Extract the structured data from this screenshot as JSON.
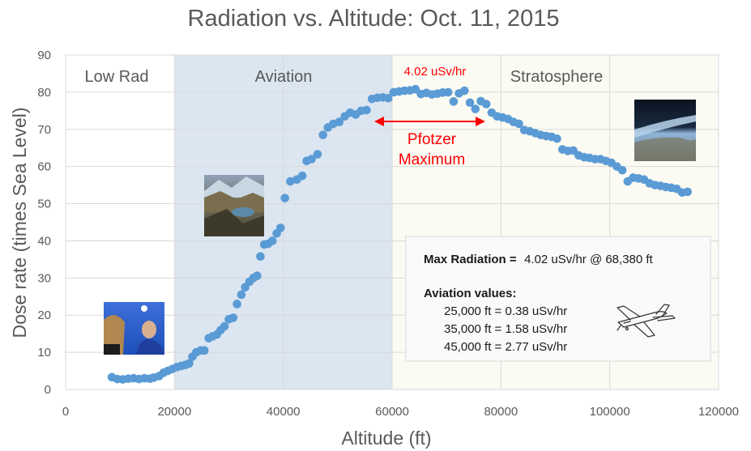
{
  "chart_data": {
    "type": "scatter",
    "title": "Radiation vs. Altitude: Oct. 11, 2015",
    "xlabel": "Altitude (ft)",
    "ylabel": "Dose rate (times Sea Level)",
    "xlim": [
      0,
      120000
    ],
    "ylim": [
      0,
      90
    ],
    "xticks": [
      0,
      20000,
      40000,
      60000,
      80000,
      100000,
      120000
    ],
    "yticks": [
      0,
      10,
      20,
      30,
      40,
      50,
      60,
      70,
      80,
      90
    ],
    "grid": true,
    "colors": {
      "points": "#5b9bd5",
      "aviation_band": "#dce6f1",
      "stratosphere_band": "#fbfbf3",
      "annotation": "#ff0000",
      "text": "#595959"
    },
    "regions": [
      {
        "label": "Low Rad",
        "x": [
          0,
          20000
        ]
      },
      {
        "label": "Aviation",
        "x": [
          20000,
          60000
        ]
      },
      {
        "label": "Stratosphere",
        "x": [
          60000,
          120000
        ]
      }
    ],
    "annotations": {
      "peak_label": "4.02 uSv/hr",
      "pfotzer_line1": "Pfotzer",
      "pfotzer_line2": "Maximum"
    },
    "info_box": {
      "max_bold": "Max Radiation =",
      "max_value": "4.02 uSv/hr @ 68,380 ft",
      "aviation_heading": "Aviation values:",
      "lines": [
        "25,000 ft = 0.38 uSv/hr",
        "35,000 ft = 1.58 uSv/hr",
        "45,000 ft = 2.77 uSv/hr"
      ]
    },
    "series": [
      {
        "x": [
          8500,
          9500,
          10500,
          11500,
          12500,
          13500,
          14500,
          15500,
          16200,
          17200,
          18000,
          18800,
          19600,
          20400,
          21200,
          22000,
          22700,
          23300,
          24000,
          24800,
          25500,
          26300,
          27000,
          27800,
          28500,
          29200,
          30000,
          30800,
          31500,
          32300,
          33000,
          33800,
          34500,
          35200,
          35800,
          36500,
          37200,
          38000,
          38800,
          39500,
          40300,
          41300,
          42500,
          43500,
          44300,
          45200,
          46300,
          47300,
          48200,
          49200,
          50300,
          51300,
          52300,
          53300,
          54300,
          55300,
          56300,
          57300,
          58300,
          59300,
          60300,
          61300,
          62300,
          63300,
          64300,
          65300,
          66300,
          67300,
          68300,
          69300,
          70300,
          71300,
          72300,
          73300,
          74300,
          75300,
          76300,
          77300,
          78300,
          79300,
          80300,
          81300,
          82300,
          83300,
          84300,
          85300,
          86300,
          87300,
          88300,
          89300,
          90300,
          91300,
          92300,
          93300,
          94300,
          95300,
          96300,
          97300,
          98300,
          99300,
          100300,
          101300,
          102300,
          103300,
          104300,
          105300,
          106300,
          107300,
          108300,
          109300,
          110300,
          111300,
          112300,
          113300,
          114300
        ],
        "y": [
          3.3,
          2.8,
          2.7,
          2.9,
          3.0,
          2.8,
          3.0,
          2.9,
          3.2,
          3.6,
          4.5,
          5.0,
          5.5,
          6.0,
          6.3,
          6.6,
          7.0,
          8.8,
          10.0,
          10.5,
          10.5,
          13.8,
          14.3,
          14.8,
          16.0,
          17.0,
          18.9,
          19.3,
          23.0,
          25.5,
          27.5,
          29.0,
          30.0,
          30.6,
          35.8,
          39.0,
          39.2,
          40.0,
          42.0,
          43.5,
          51.5,
          56.0,
          56.5,
          57.5,
          61.5,
          62.0,
          63.3,
          68.5,
          70.5,
          71.5,
          72.0,
          73.5,
          74.5,
          74.0,
          75.0,
          75.2,
          78.2,
          78.5,
          78.6,
          78.4,
          80.0,
          80.2,
          80.4,
          80.5,
          80.8,
          79.5,
          79.8,
          79.4,
          79.6,
          79.9,
          80.0,
          77.5,
          79.7,
          80.4,
          77.2,
          75.5,
          77.6,
          76.8,
          74.5,
          73.5,
          73.2,
          72.8,
          72.0,
          71.5,
          69.8,
          69.5,
          69.0,
          68.5,
          68.2,
          68.0,
          67.5,
          64.6,
          64.2,
          64.3,
          63.0,
          62.5,
          62.3,
          62.0,
          62.0,
          61.5,
          61.0,
          60.0,
          59.0,
          56.0,
          57.0,
          56.8,
          56.5,
          55.5,
          55.0,
          54.8,
          54.5,
          54.3,
          54.0,
          53.0,
          53.2
        ]
      }
    ]
  },
  "photos": [
    "selfie-photo",
    "mountain-photo",
    "earth-horizon-photo"
  ],
  "icons": [
    "airplane-icon"
  ]
}
